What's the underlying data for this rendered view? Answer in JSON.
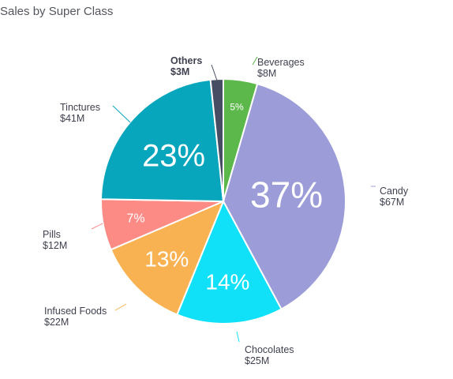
{
  "title": "Sales by Super Class",
  "chart_data": {
    "type": "pie",
    "title": "Sales by Super Class",
    "slices": [
      {
        "label": "Beverages",
        "value_label": "$8M",
        "value": 8,
        "percent_label": "5%",
        "color": "#5cb84b"
      },
      {
        "label": "Candy",
        "value_label": "$67M",
        "value": 67,
        "percent_label": "37%",
        "color": "#9b9cd8"
      },
      {
        "label": "Chocolates",
        "value_label": "$25M",
        "value": 25,
        "percent_label": "14%",
        "color": "#10e0f8"
      },
      {
        "label": "Infused Foods",
        "value_label": "$22M",
        "value": 22,
        "percent_label": "13%",
        "color": "#f9b252"
      },
      {
        "label": "Pills",
        "value_label": "$12M",
        "value": 12,
        "percent_label": "7%",
        "color": "#fc8b86"
      },
      {
        "label": "Tinctures",
        "value_label": "$41M",
        "value": 41,
        "percent_label": "23%",
        "color": "#08a6bc"
      },
      {
        "label": "Others",
        "value_label": "$3M",
        "value": 3,
        "percent_label": "",
        "color": "#474e63",
        "emphasized": true
      }
    ]
  }
}
